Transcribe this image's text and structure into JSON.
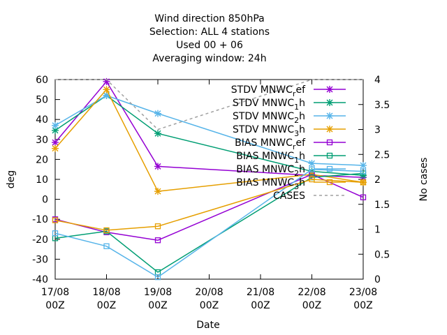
{
  "chart_data": {
    "type": "line",
    "title_lines": [
      "Wind direction 850hPa",
      "Selection: ALL      4 stations",
      "Used  00 + 06",
      "Averaging window: 24h"
    ],
    "xlabel": "Date",
    "ylabel": "deg",
    "y2label": "No cases",
    "x_categories": [
      "17/08 00Z",
      "18/08 00Z",
      "19/08 00Z",
      "20/08 00Z",
      "21/08 00Z",
      "22/08 00Z",
      "23/08 00Z"
    ],
    "x_tick_top": [
      "17/08",
      "18/08",
      "19/08",
      "20/08",
      "21/08",
      "22/08",
      "23/08"
    ],
    "x_tick_bottom": [
      "00Z",
      "00Z",
      "00Z",
      "00Z",
      "00Z",
      "00Z",
      "00Z"
    ],
    "ylim": [
      -40,
      60
    ],
    "yticks": [
      -40,
      -30,
      -20,
      -10,
      0,
      10,
      20,
      30,
      40,
      50,
      60
    ],
    "y2lim": [
      0,
      4
    ],
    "y2ticks": [
      "0",
      "0.5",
      "1",
      "1.5",
      "2",
      "2.5",
      "3",
      "3.5",
      "4"
    ],
    "legend_position": "top-right",
    "series": [
      {
        "name_base": "STDV MNWC",
        "name_sub": "r",
        "name_tail": "ef",
        "color": "#9400d3",
        "marker": "star",
        "axis": "y1",
        "x": [
          0,
          1,
          2,
          5,
          6
        ],
        "values": [
          28.5,
          59,
          16.5,
          12,
          11
        ]
      },
      {
        "name_base": "STDV MNWC",
        "name_sub": "1",
        "name_tail": "h",
        "color": "#009e73",
        "marker": "star",
        "axis": "y1",
        "x": [
          0,
          1,
          2,
          5,
          6
        ],
        "values": [
          34.5,
          52,
          33,
          14,
          12
        ]
      },
      {
        "name_base": "STDV MNWC",
        "name_sub": "2",
        "name_tail": "h",
        "color": "#56b4e9",
        "marker": "star",
        "axis": "y1",
        "x": [
          0,
          1,
          2,
          5,
          6
        ],
        "values": [
          37,
          52,
          43,
          18,
          17
        ]
      },
      {
        "name_base": "STDV MNWC",
        "name_sub": "3",
        "name_tail": "h",
        "color": "#e69f00",
        "marker": "star",
        "axis": "y1",
        "x": [
          0,
          1,
          2,
          5,
          6
        ],
        "values": [
          25.5,
          55,
          4,
          12.5,
          8.5
        ]
      },
      {
        "name_base": "BIAS MNWC",
        "name_sub": "r",
        "name_tail": "ef",
        "color": "#9400d3",
        "marker": "square",
        "axis": "y1",
        "x": [
          0,
          1,
          2,
          5,
          6
        ],
        "values": [
          -10,
          -16.5,
          -20.5,
          12.5,
          1
        ]
      },
      {
        "name_base": "BIAS MNWC",
        "name_sub": "1",
        "name_tail": "h",
        "color": "#009e73",
        "marker": "square",
        "axis": "y1",
        "x": [
          0,
          1,
          2,
          5,
          6
        ],
        "values": [
          -19.5,
          -16,
          -36.5,
          11,
          13
        ]
      },
      {
        "name_base": "BIAS MNWC",
        "name_sub": "2",
        "name_tail": "h",
        "color": "#56b4e9",
        "marker": "square",
        "axis": "y1",
        "x": [
          0,
          1,
          2,
          5,
          6
        ],
        "values": [
          -17,
          -23.5,
          -39,
          15,
          14
        ]
      },
      {
        "name_base": "BIAS MNWC",
        "name_sub": "3",
        "name_tail": "h",
        "color": "#e69f00",
        "marker": "square",
        "axis": "y1",
        "x": [
          0,
          1,
          2,
          5,
          6
        ],
        "values": [
          -10.5,
          -15.5,
          -13.5,
          10,
          8.5
        ]
      },
      {
        "name_base": "CASES",
        "name_sub": "",
        "name_tail": "",
        "color": "#a0a0a0",
        "marker": "none",
        "axis": "y2",
        "dashed": true,
        "x": [
          0,
          1,
          2,
          5,
          6
        ],
        "values": [
          4,
          4,
          3,
          4,
          4
        ]
      }
    ]
  }
}
